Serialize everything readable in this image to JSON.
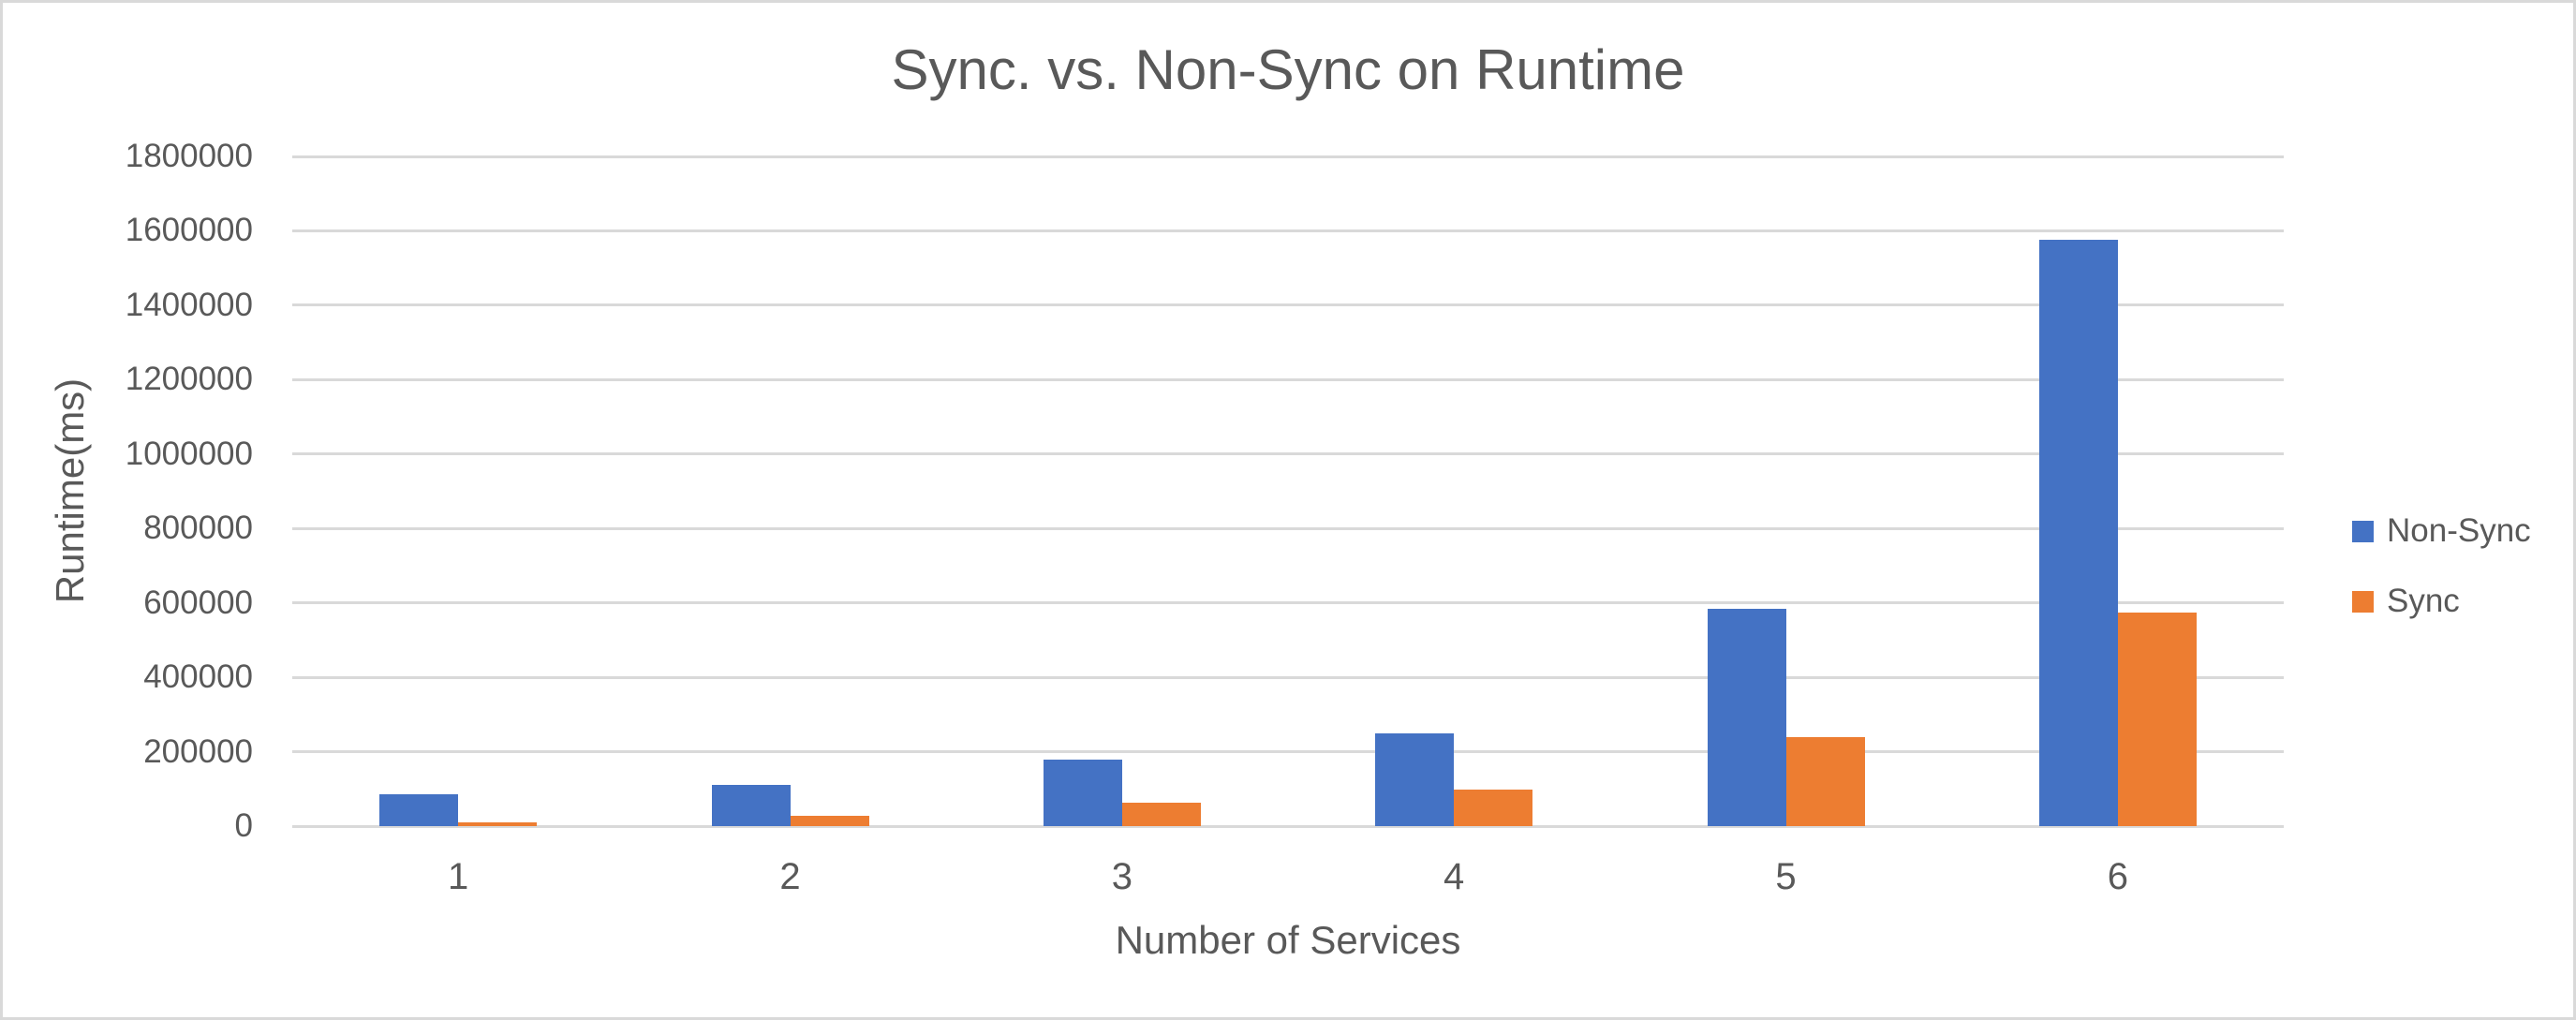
{
  "chart_data": {
    "type": "bar",
    "title": "Sync. vs. Non-Sync on Runtime",
    "xlabel": "Number of Services",
    "ylabel": "Runtime(ms)",
    "categories": [
      "1",
      "2",
      "3",
      "4",
      "5",
      "6"
    ],
    "series": [
      {
        "name": "Non-Sync",
        "color": "#4472C4",
        "values": [
          85000,
          112000,
          180000,
          250000,
          583000,
          1575000
        ]
      },
      {
        "name": "Sync",
        "color": "#ED7D31",
        "values": [
          11000,
          28000,
          64000,
          99000,
          240000,
          575000
        ]
      }
    ],
    "ylim": [
      0,
      1800000
    ],
    "ytick_step": 200000,
    "ytick_labels": [
      "0",
      "200000",
      "400000",
      "600000",
      "800000",
      "1000000",
      "1200000",
      "1400000",
      "1600000",
      "1800000"
    ],
    "grid": "horizontal",
    "legend_position": "right",
    "colors": {
      "text": "#595959",
      "gridline": "#D9D9D9",
      "axis_line": "#D9D9D9",
      "border": "#D9D9D9",
      "background": "#FFFFFF"
    }
  }
}
